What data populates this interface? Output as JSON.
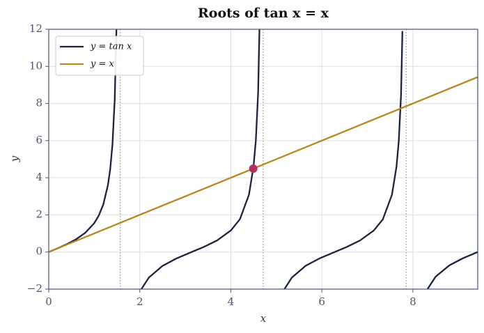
{
  "chart_data": {
    "type": "line",
    "title": "Roots of tan x = x",
    "x_label": "x",
    "y_label": "y",
    "xlim": [
      0,
      9.4248
    ],
    "ylim": [
      -2,
      12
    ],
    "xticks": [
      0,
      2,
      4,
      6,
      8
    ],
    "yticks": [
      {
        "value": -2,
        "label": "−2"
      },
      0,
      2,
      4,
      6,
      8,
      10,
      12
    ],
    "grid": true,
    "legend": "upper left",
    "series": [
      {
        "name": "y = tan x",
        "color": "#1b2340",
        "x": [
          0,
          0.2,
          0.4,
          0.6,
          0.8,
          1.0,
          1.1,
          1.2,
          1.3,
          1.35,
          1.4,
          1.45,
          1.49,
          null,
          2.03,
          2.2,
          2.5,
          2.8,
          3.1416,
          3.4,
          3.7,
          4.0,
          4.2,
          4.4,
          4.5,
          4.55,
          4.6,
          4.63,
          null,
          5.17,
          5.34,
          5.64,
          5.94,
          6.28,
          6.54,
          6.84,
          7.14,
          7.34,
          7.54,
          7.64,
          7.69,
          7.74,
          7.77,
          null,
          8.31,
          8.5,
          8.8,
          9.1,
          9.42
        ],
        "values": [
          0,
          0.203,
          0.423,
          0.684,
          1.03,
          1.557,
          1.965,
          2.572,
          3.602,
          4.455,
          5.798,
          8.238,
          12.35,
          null,
          -2.02,
          -1.374,
          -0.747,
          -0.356,
          0,
          0.264,
          0.625,
          1.158,
          1.766,
          3.096,
          4.637,
          6.02,
          8.58,
          12.1,
          null,
          -2.03,
          -1.379,
          -0.75,
          -0.357,
          -0.003,
          0.263,
          0.623,
          1.155,
          1.759,
          3.08,
          4.6,
          5.97,
          8.47,
          11.9,
          null,
          -2.04,
          -1.33,
          -0.722,
          -0.337,
          -0.005
        ]
      },
      {
        "name": "y = x",
        "color": "#b8861e",
        "x": [
          0,
          9.42
        ],
        "values": [
          0,
          9.42
        ]
      }
    ],
    "asymptotes": [
      1.5708,
      4.7124,
      7.854
    ],
    "root": {
      "x": 4.4934,
      "y": 4.4934,
      "color": "#b5305a"
    }
  }
}
